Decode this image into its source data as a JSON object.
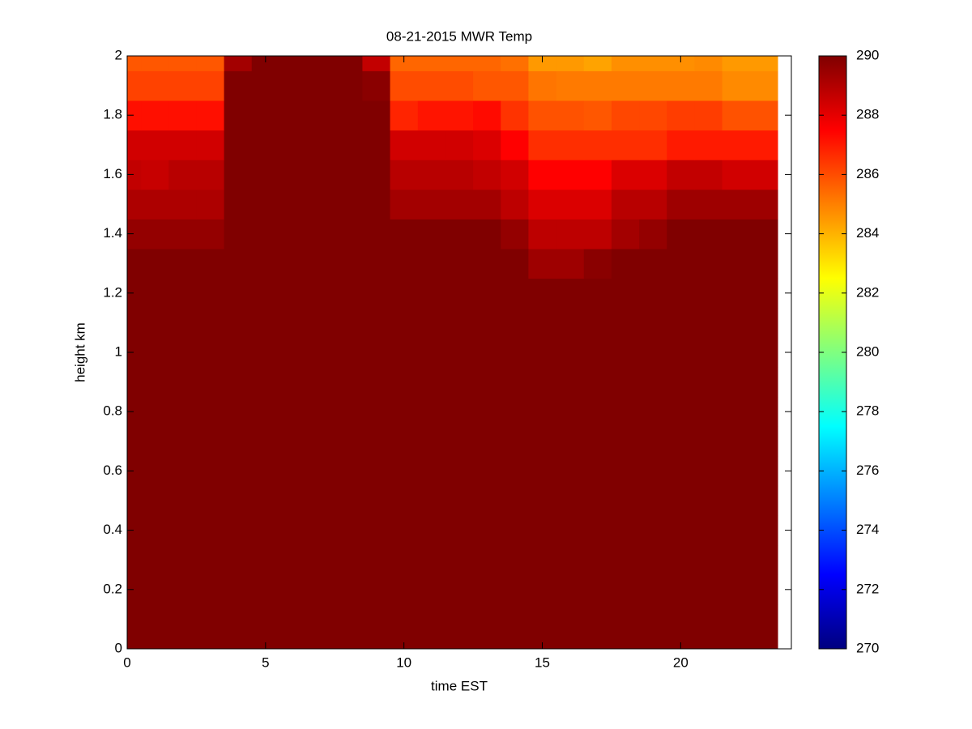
{
  "chart_data": {
    "type": "heatmap",
    "title": "08-21-2015 MWR Temp",
    "x_label": "time EST",
    "y_label": "height km",
    "colormap": "jet",
    "x": [
      0,
      1,
      2,
      3,
      4,
      5,
      6,
      7,
      8,
      9,
      10,
      11,
      12,
      13,
      14,
      15,
      16,
      17,
      18,
      19,
      20,
      21,
      22,
      23
    ],
    "y": [
      0,
      0.1,
      0.2,
      0.3,
      0.4,
      0.5,
      0.6,
      0.7,
      0.8,
      0.9,
      1,
      1.1,
      1.2,
      1.3,
      1.4,
      1.5,
      1.6,
      1.7,
      1.8,
      1.9,
      2
    ],
    "z": [
      [
        290,
        290,
        290,
        290,
        290,
        290,
        290,
        290,
        290,
        290,
        290,
        290,
        290,
        290,
        290,
        290,
        290,
        290,
        290,
        290,
        290,
        290,
        290,
        290
      ],
      [
        290,
        290,
        290,
        290,
        290,
        290,
        290,
        290,
        290,
        290,
        290,
        290,
        290,
        290,
        290,
        290,
        290,
        290,
        290,
        290,
        290,
        290,
        290,
        290
      ],
      [
        290,
        290,
        290,
        290,
        290,
        290,
        290,
        290,
        290,
        290,
        290,
        290,
        290,
        290,
        290,
        290,
        290,
        290,
        290,
        290,
        290,
        290,
        290,
        290
      ],
      [
        290,
        290,
        290,
        290,
        290,
        290,
        290,
        290,
        290,
        290,
        290,
        290,
        290,
        290,
        290,
        290,
        290,
        290,
        290,
        290,
        290,
        290,
        290,
        290
      ],
      [
        290,
        290,
        290,
        290,
        290,
        290,
        290,
        290,
        290,
        290,
        290,
        290,
        290,
        290,
        290,
        290,
        290,
        290,
        290,
        290,
        290,
        290,
        290,
        290
      ],
      [
        290,
        290,
        290,
        290,
        290,
        290,
        290,
        290,
        290,
        290,
        290,
        290,
        290,
        290,
        290,
        290,
        290,
        290,
        290,
        290,
        290,
        290,
        290,
        290
      ],
      [
        290,
        290,
        290,
        290,
        290,
        290,
        290,
        290,
        290,
        290,
        290,
        290,
        290,
        290,
        290,
        290,
        290,
        290,
        290,
        290,
        290,
        290,
        290,
        290
      ],
      [
        290,
        290,
        290,
        290,
        290,
        290,
        290,
        290,
        290,
        290,
        290,
        290,
        290,
        290,
        290,
        290,
        290,
        290,
        290,
        290,
        290,
        290,
        290,
        290
      ],
      [
        290,
        290,
        290,
        290,
        290,
        290,
        290,
        290,
        290,
        290,
        290,
        290,
        290,
        290,
        290,
        290,
        290,
        290,
        290,
        290,
        290,
        290,
        290,
        290
      ],
      [
        290,
        290,
        290,
        290,
        290,
        290,
        290,
        290,
        290,
        290,
        290,
        290,
        290,
        290,
        290,
        290,
        290,
        290,
        290,
        290,
        290,
        290,
        290,
        290
      ],
      [
        290,
        290,
        290,
        290,
        290,
        290,
        290,
        290,
        290,
        290,
        290,
        290,
        290,
        290,
        290,
        290,
        290,
        290,
        290,
        290,
        290,
        290,
        290,
        290
      ],
      [
        290,
        290,
        290,
        290,
        290,
        290,
        290,
        290,
        290,
        290,
        290,
        290,
        290,
        290,
        290,
        290,
        290,
        290,
        290,
        290,
        290,
        290,
        290,
        290
      ],
      [
        290,
        290,
        290,
        290,
        290,
        290,
        290,
        290,
        290,
        290,
        290,
        290,
        290,
        290,
        290,
        290,
        290,
        290,
        290,
        290,
        290,
        290,
        290,
        290
      ],
      [
        290,
        290,
        290,
        290,
        290,
        290,
        290,
        290,
        290,
        290,
        290,
        290,
        290,
        290,
        290,
        289.4,
        289.4,
        289.8,
        290,
        290,
        290,
        290,
        290,
        290
      ],
      [
        289.6,
        289.6,
        289.6,
        289.6,
        290,
        290,
        290,
        290,
        290,
        290,
        290,
        290,
        290,
        290,
        289.6,
        288.8,
        288.8,
        288.8,
        289.3,
        289.6,
        290,
        290,
        290,
        290
      ],
      [
        289.1,
        289.1,
        289.1,
        289.1,
        290,
        290,
        290,
        290,
        290,
        290,
        289.3,
        289.3,
        289.3,
        289.3,
        288.8,
        288.2,
        288.2,
        288.2,
        288.9,
        288.9,
        289.4,
        289.4,
        289.4,
        289.4
      ],
      [
        288.7,
        288.6,
        288.9,
        288.9,
        290,
        290,
        290,
        290,
        290,
        290,
        288.9,
        288.9,
        288.9,
        288.7,
        288.4,
        287.5,
        287.5,
        287.5,
        288.2,
        288.2,
        288.7,
        288.7,
        288.4,
        288.4
      ],
      [
        288.4,
        288.4,
        288.4,
        288.4,
        290,
        290,
        290,
        290,
        290,
        290,
        288.4,
        288.4,
        288.4,
        288.2,
        287.5,
        286.6,
        286.6,
        286.6,
        286.6,
        286.6,
        287,
        287,
        287,
        287
      ],
      [
        287.2,
        287.2,
        287.2,
        287.2,
        290,
        290,
        290,
        290,
        290,
        290,
        286.8,
        287.1,
        287.1,
        287.3,
        286.5,
        285.9,
        285.9,
        285.8,
        286.1,
        286.1,
        286.3,
        286.3,
        285.9,
        285.9
      ],
      [
        286.2,
        286.2,
        286.2,
        286.2,
        290,
        290,
        290,
        290,
        290,
        289.8,
        286,
        286,
        286,
        285.8,
        285.8,
        285.2,
        285.1,
        285.1,
        285.1,
        285.1,
        285.1,
        285.1,
        284.8,
        284.8
      ],
      [
        285.8,
        285.8,
        285.8,
        285.8,
        289.3,
        290,
        290,
        290,
        290,
        288.7,
        285.5,
        285.5,
        285.5,
        285.5,
        285.3,
        284.5,
        284.5,
        284.3,
        284.7,
        284.7,
        284.7,
        284.8,
        284.5,
        284.5
      ]
    ],
    "xlim": [
      0,
      24
    ],
    "xticks": [
      0,
      5,
      10,
      15,
      20
    ],
    "ylim": [
      0,
      2
    ],
    "yticks": [
      0,
      0.2,
      0.4,
      0.6,
      0.8,
      1,
      1.2,
      1.4,
      1.6,
      1.8,
      2
    ],
    "clim": [
      270,
      290
    ],
    "cticks": [
      270,
      272,
      274,
      276,
      278,
      280,
      282,
      284,
      286,
      288,
      290
    ]
  }
}
